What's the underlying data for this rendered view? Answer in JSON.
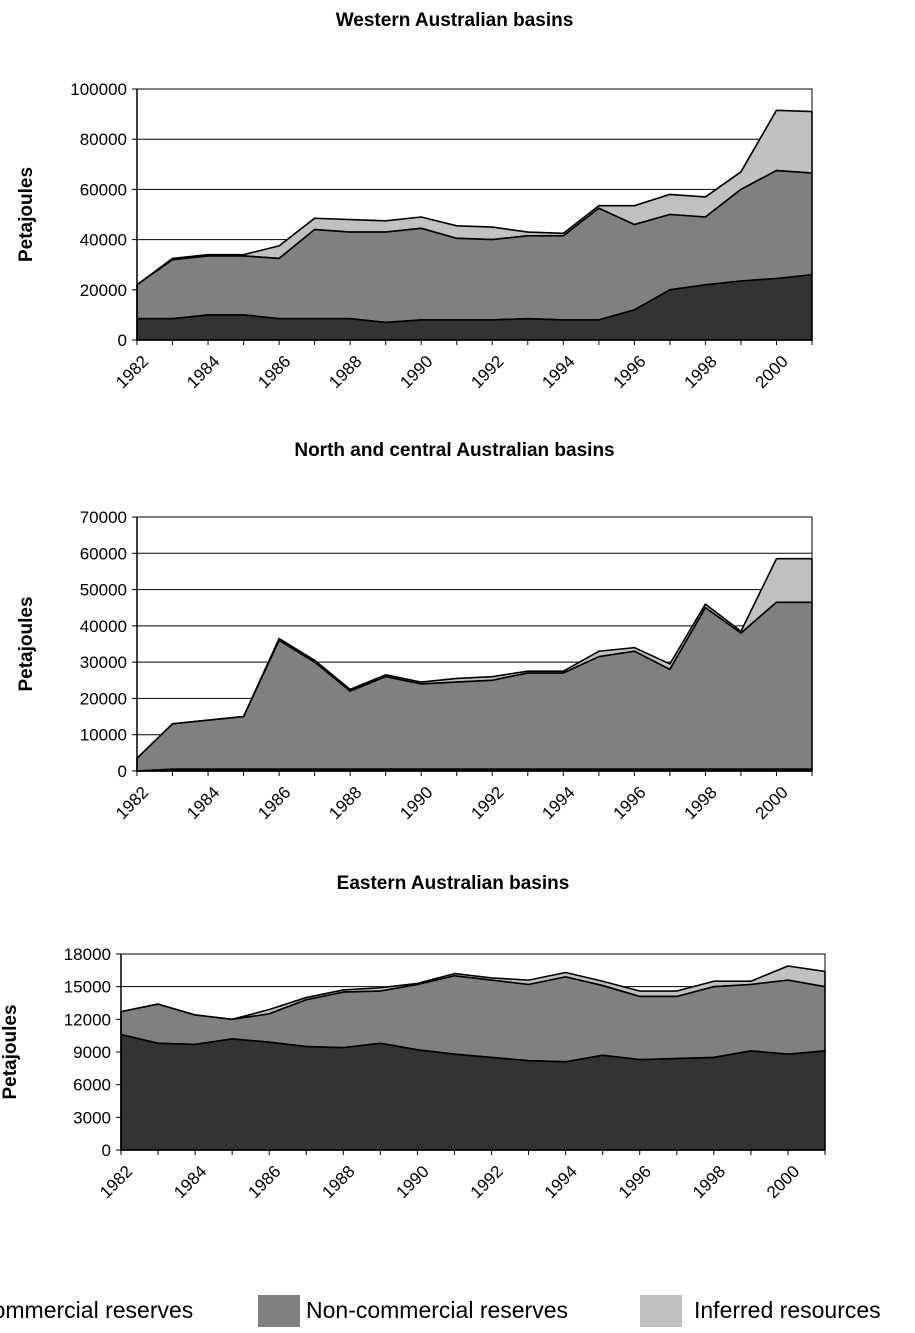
{
  "colors": {
    "commercial": "#333333",
    "non_commercial": "#808080",
    "inferred": "#c0c0c0",
    "gridline": "#000000",
    "plot_background": "#ffffff"
  },
  "legend": {
    "placement": "bottom",
    "items": [
      "Commercial reserves",
      "Non-commercial reserves",
      "Inferred resources"
    ]
  },
  "chart_data": [
    {
      "type": "area",
      "stacked": true,
      "title": "Western Australian basins",
      "ylabel": "Petajoules",
      "xlabel": "",
      "ylim": [
        0,
        100000
      ],
      "yticks": [
        0,
        20000,
        40000,
        60000,
        80000,
        100000
      ],
      "xticks": [
        "1982",
        "1984",
        "1986",
        "1988",
        "1990",
        "1992",
        "1994",
        "1996",
        "1998",
        "2000"
      ],
      "grid": "horizontal",
      "x": [
        1982,
        1983,
        1984,
        1985,
        1986,
        1987,
        1988,
        1989,
        1990,
        1991,
        1992,
        1993,
        1994,
        1995,
        1996,
        1997,
        1998,
        1999,
        2000,
        2001
      ],
      "series": [
        {
          "name": "Commercial reserves",
          "values": [
            8500,
            8500,
            10000,
            10000,
            8500,
            8500,
            8500,
            7000,
            8000,
            8000,
            8000,
            8500,
            8000,
            8000,
            12000,
            20000,
            22000,
            23500,
            24500,
            26000
          ]
        },
        {
          "name": "Non-commercial reserves",
          "values": [
            13500,
            23500,
            23500,
            23500,
            24000,
            35500,
            34500,
            36000,
            36500,
            32500,
            32000,
            33000,
            33500,
            44500,
            34000,
            30000,
            27000,
            36500,
            43000,
            40500
          ]
        },
        {
          "name": "Inferred resources",
          "values": [
            0,
            500,
            500,
            500,
            5000,
            4500,
            5000,
            4500,
            4500,
            5000,
            5000,
            1500,
            1000,
            1000,
            7500,
            8000,
            8000,
            7000,
            24000,
            24500
          ]
        }
      ]
    },
    {
      "type": "area",
      "stacked": true,
      "title": "North and central Australian basins",
      "ylabel": "Petajoules",
      "xlabel": "",
      "ylim": [
        0,
        70000
      ],
      "yticks": [
        0,
        10000,
        20000,
        30000,
        40000,
        50000,
        60000,
        70000
      ],
      "xticks": [
        "1982",
        "1984",
        "1986",
        "1988",
        "1990",
        "1992",
        "1994",
        "1996",
        "1998",
        "2000"
      ],
      "grid": "horizontal",
      "x": [
        1982,
        1983,
        1984,
        1985,
        1986,
        1987,
        1988,
        1989,
        1990,
        1991,
        1992,
        1993,
        1994,
        1995,
        1996,
        1997,
        1998,
        1999,
        2000,
        2001
      ],
      "series": [
        {
          "name": "Commercial reserves",
          "values": [
            0,
            500,
            500,
            500,
            500,
            500,
            500,
            500,
            500,
            500,
            500,
            500,
            500,
            500,
            500,
            500,
            500,
            500,
            500,
            500
          ]
        },
        {
          "name": "Non-commercial reserves",
          "values": [
            3500,
            12500,
            13500,
            14500,
            35500,
            29500,
            21500,
            25500,
            23500,
            24000,
            24500,
            26500,
            26500,
            31000,
            32500,
            27500,
            44500,
            37500,
            46000,
            46000
          ]
        },
        {
          "name": "Inferred resources",
          "values": [
            0,
            0,
            0,
            0,
            500,
            500,
            500,
            500,
            500,
            1000,
            1000,
            500,
            500,
            1500,
            1000,
            1500,
            1000,
            500,
            12000,
            12000
          ]
        }
      ]
    },
    {
      "type": "area",
      "stacked": true,
      "title": "Eastern Australian basins",
      "ylabel": "Petajoules",
      "xlabel": "",
      "ylim": [
        0,
        18000
      ],
      "yticks": [
        0,
        3000,
        6000,
        9000,
        12000,
        15000,
        18000
      ],
      "xticks": [
        "1982",
        "1984",
        "1986",
        "1988",
        "1990",
        "1992",
        "1994",
        "1996",
        "1998",
        "2000"
      ],
      "grid": "horizontal",
      "x": [
        1982,
        1983,
        1984,
        1985,
        1986,
        1987,
        1988,
        1989,
        1990,
        1991,
        1992,
        1993,
        1994,
        1995,
        1996,
        1997,
        1998,
        1999,
        2000,
        2001
      ],
      "series": [
        {
          "name": "Commercial reserves",
          "values": [
            10600,
            9800,
            9700,
            10200,
            9900,
            9500,
            9400,
            9800,
            9200,
            8800,
            8500,
            8200,
            8100,
            8700,
            8300,
            8400,
            8500,
            9100,
            8800,
            9100
          ]
        },
        {
          "name": "Non-commercial reserves",
          "values": [
            2100,
            3600,
            2700,
            1800,
            2600,
            4300,
            5100,
            4800,
            6000,
            7200,
            7100,
            7000,
            7800,
            6400,
            5800,
            5700,
            6500,
            6100,
            6800,
            5900
          ]
        },
        {
          "name": "Inferred resources",
          "values": [
            0,
            0,
            0,
            0,
            400,
            200,
            200,
            300,
            100,
            200,
            200,
            400,
            400,
            400,
            500,
            500,
            500,
            300,
            1300,
            1400
          ]
        }
      ]
    }
  ]
}
